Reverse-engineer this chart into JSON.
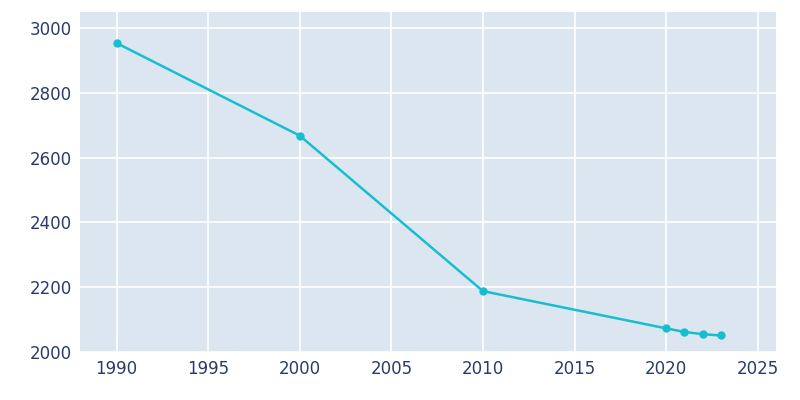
{
  "years": [
    1990,
    2000,
    2010,
    2020,
    2021,
    2022,
    2023
  ],
  "population": [
    2954,
    2668,
    2188,
    2073,
    2062,
    2055,
    2051
  ],
  "line_color": "#17BECF",
  "marker_color": "#17BECF",
  "fig_bg_color": "#FFFFFF",
  "plot_bg_color": "#DCE6F0",
  "tick_color": "#2B3A6B",
  "xlim": [
    1988,
    2026
  ],
  "ylim": [
    2000,
    3050
  ],
  "yticks": [
    2000,
    2200,
    2400,
    2600,
    2800,
    3000
  ],
  "xticks": [
    1990,
    1995,
    2000,
    2005,
    2010,
    2015,
    2020,
    2025
  ],
  "linewidth": 1.8,
  "markersize": 5,
  "tick_fontsize": 12,
  "grid_color": "#FFFFFF",
  "grid_linewidth": 1.2
}
